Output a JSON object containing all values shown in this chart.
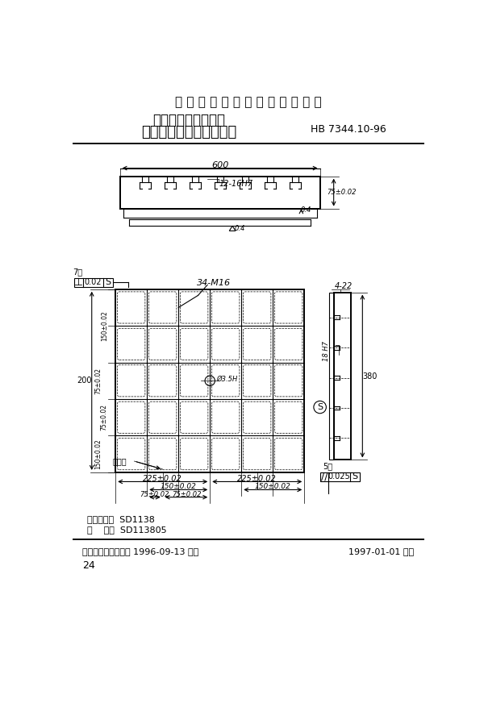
{
  "bg_color": "#ffffff",
  "title_line1": "中 华 人 民 共 和 国 航 空 工 业 标 准",
  "title_line2": "数控机床用夹具元件",
  "title_line3": "大型槽定位长方形基础板",
  "title_right": "HB 7344.10-96",
  "footer_left": "中国航空工业总公司 1996-09-13 发布",
  "footer_right": "1997-01-01 实施",
  "page_num": "24",
  "classify_line1": "分类代号：  SD1138",
  "classify_line2": "标    记：  SD113805",
  "dim_600": "600",
  "dim_75": "75±0.02",
  "dim_slot_label": "12-16H7",
  "dim_34m16": "34-M16",
  "dim_4_22": "4-22",
  "dim_380": "380",
  "dim_18h7": "18 H7",
  "dim_225a": "225±0.02",
  "dim_225b": "225±0.02",
  "dim_150a": "150±0.02",
  "dim_150b": "150±0.02",
  "dim_75a": "75±0.02",
  "dim_75b": "75±0.02",
  "dim_200": "200",
  "dim_150_v1": "150±0.02",
  "dim_150_v2": "150±0.02",
  "dim_75_v1": "75±0.02",
  "dim_75_v2": "75±0.02",
  "gdt1_sym": "⊥",
  "gdt1_val": "0.02",
  "gdt1_ref": "S",
  "gdt1_note": "7槽",
  "gdt2_sym": "//",
  "gdt2_val": "0.025",
  "gdt2_ref": "S",
  "gdt2_note": "5槽",
  "label_biaoji": "标记处",
  "center_label": "Ø3.5H",
  "ra_04": "0.4",
  "n_cols": 6,
  "n_rows": 5
}
